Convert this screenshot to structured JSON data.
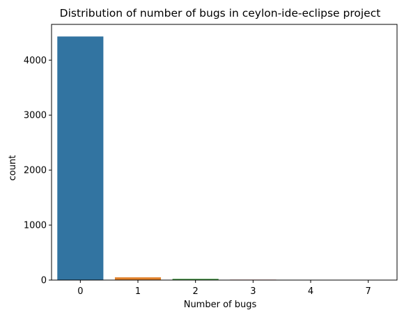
{
  "chart_data": {
    "type": "bar",
    "title": "Distribution of number of bugs in ceylon-ide-eclipse project",
    "xlabel": "Number of bugs",
    "ylabel": "count",
    "categories": [
      "0",
      "1",
      "2",
      "3",
      "4",
      "7"
    ],
    "values": [
      4430,
      50,
      22,
      8,
      2,
      1
    ],
    "colors": [
      "#3274a1",
      "#e1812c",
      "#3a923a",
      "#c03d3e",
      "#9372b2",
      "#845b53"
    ],
    "ylim": [
      0,
      4650
    ],
    "yticks": [
      0,
      1000,
      2000,
      3000,
      4000
    ],
    "grid": false,
    "legend": "none"
  }
}
